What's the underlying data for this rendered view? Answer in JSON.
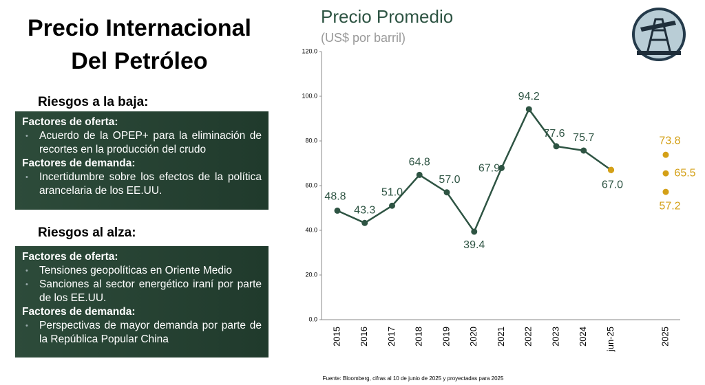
{
  "title_lines": [
    "Precio Internacional",
    "Del Petróleo"
  ],
  "risks_down": {
    "heading": "Riesgos a la baja:",
    "groups": [
      {
        "title": "Factores de oferta:",
        "items": [
          "Acuerdo de la OPEP+ para la eliminación de recortes en la producción del crudo"
        ]
      },
      {
        "title": "Factores de demanda:",
        "items": [
          "Incertidumbre sobre los efectos de la política arancelaria de los EE.UU."
        ]
      }
    ]
  },
  "risks_up": {
    "heading": "Riesgos al alza:",
    "groups": [
      {
        "title": "Factores de oferta:",
        "items": [
          "Tensiones geopolíticas en Oriente Medio",
          "Sanciones al sector energético iraní por parte de los EE.UU."
        ]
      },
      {
        "title": "Factores de demanda:",
        "items": [
          "Perspectivas de mayor demanda por parte de la  República Popular China"
        ]
      }
    ]
  },
  "source": "Fuente: Bloomberg, cifras al 10 de junio de 2025 y proyectadas para 2025",
  "chart_data": {
    "type": "line",
    "title": "Precio Promedio",
    "subtitle": "(US$ por barril)",
    "categories": [
      "2015",
      "2016",
      "2017",
      "2018",
      "2019",
      "2020",
      "2021",
      "2022",
      "2023",
      "2024",
      "jun-25",
      null,
      "2025"
    ],
    "series": [
      {
        "color": "#2e5443",
        "dashed": false,
        "values": [
          48.8,
          43.3,
          51.0,
          64.8,
          57.0,
          39.4,
          67.9,
          94.2,
          77.6,
          75.7,
          67.0,
          null,
          null
        ],
        "value_labels": [
          "48.8",
          "43.3",
          "51.0",
          "64.8",
          "57.0",
          "39.4",
          "67.9",
          "94.2",
          "77.6",
          "75.7",
          "67.0",
          null,
          null
        ]
      },
      {
        "color": "#d4a017",
        "dashed": true,
        "values": [
          null,
          null,
          null,
          null,
          null,
          null,
          null,
          null,
          null,
          null,
          67.0,
          null,
          73.8
        ],
        "value_labels": [
          null,
          null,
          null,
          null,
          null,
          null,
          null,
          null,
          null,
          null,
          null,
          null,
          "73.8"
        ]
      },
      {
        "color": "#d4a017",
        "dashed": true,
        "values": [
          null,
          null,
          null,
          null,
          null,
          null,
          null,
          null,
          null,
          null,
          67.0,
          null,
          65.5
        ],
        "value_labels": [
          null,
          null,
          null,
          null,
          null,
          null,
          null,
          null,
          null,
          null,
          null,
          null,
          "65.5"
        ]
      },
      {
        "color": "#d4a017",
        "dashed": true,
        "values": [
          null,
          null,
          null,
          null,
          null,
          null,
          null,
          null,
          null,
          null,
          67.0,
          null,
          57.2
        ],
        "value_labels": [
          null,
          null,
          null,
          null,
          null,
          null,
          null,
          null,
          null,
          null,
          null,
          null,
          "57.2"
        ]
      }
    ],
    "ylim": [
      0,
      120
    ],
    "yticks": [
      {
        "value": 0,
        "label": "0.0"
      },
      {
        "value": 20,
        "label": "20.0"
      },
      {
        "value": 40,
        "label": "40.0"
      },
      {
        "value": 60,
        "label": "60.0"
      },
      {
        "value": 80,
        "label": "80.0"
      },
      {
        "value": 100,
        "label": "100.0"
      },
      {
        "value": 120,
        "label": "120.0"
      }
    ],
    "grid": false
  }
}
